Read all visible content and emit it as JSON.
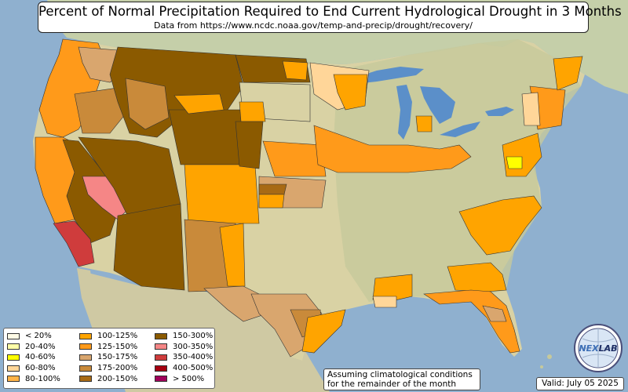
{
  "header": {
    "title": "Percent of Normal Precipitation Required to End Current Hydrological Drought in 3 Months",
    "subtitle": "Data from https://www.ncdc.noaa.gov/temp-and-precip/drought/recovery/"
  },
  "legend": {
    "columns": [
      [
        {
          "label": "< 20%",
          "color": "#fffbe6"
        },
        {
          "label": "20-40%",
          "color": "#ffffa8"
        },
        {
          "label": "40-60%",
          "color": "#ffff00"
        },
        {
          "label": "60-80%",
          "color": "#ffd699"
        },
        {
          "label": "80-100%",
          "color": "#ffb347"
        }
      ],
      [
        {
          "label": "100-125%",
          "color": "#ffa400"
        },
        {
          "label": "125-150%",
          "color": "#ff9a1a"
        },
        {
          "label": "150-175%",
          "color": "#d9a66e"
        },
        {
          "label": "175-200%",
          "color": "#c98a3a"
        },
        {
          "label": "200-150%",
          "color": "#a86a14"
        }
      ],
      [
        {
          "label": "150-300%",
          "color": "#8b5a00"
        },
        {
          "label": "300-350%",
          "color": "#f58686"
        },
        {
          "label": "350-400%",
          "color": "#cf3c3c"
        },
        {
          "label": "400-500%",
          "color": "#a50010"
        },
        {
          "label": "> 500%",
          "color": "#a0005a"
        }
      ]
    ]
  },
  "note": {
    "line1": "Assuming climatological conditions",
    "line2": "for the remainder of the month"
  },
  "valid": "Valid: July 05 2025",
  "logo": {
    "text": "NEXLAB",
    "part1": "NEX",
    "part2": "LAB"
  },
  "colors": {
    "ocean": "#8fb0cf",
    "land": "#d9d2a4",
    "land_green": "#b8c39a",
    "mexico": "#cfc9a3",
    "canada": "#c5cfa9",
    "lake": "#5b8fc9"
  }
}
